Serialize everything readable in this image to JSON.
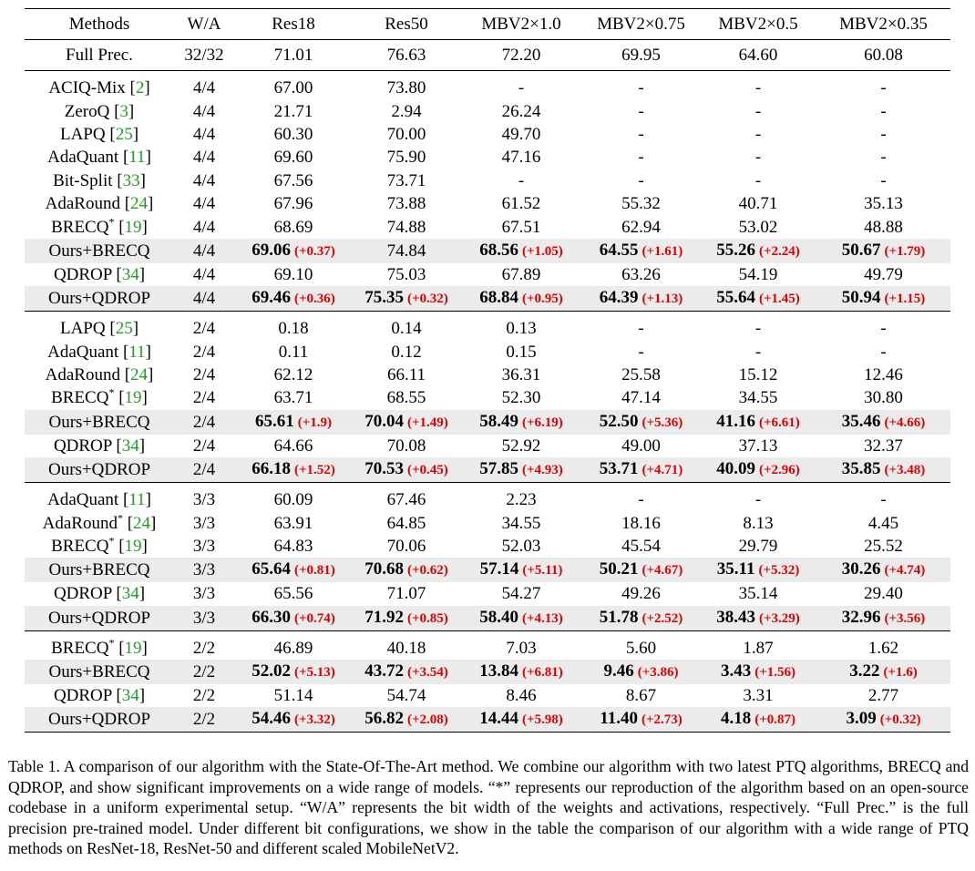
{
  "headers": [
    "Methods",
    "W/A",
    "Res18",
    "Res50",
    "MBV2×1.0",
    "MBV2×0.75",
    "MBV2×0.5",
    "MBV2×0.35"
  ],
  "full_prec": {
    "method": "Full Prec.",
    "wa": "32/32",
    "values": [
      "71.01",
      "76.63",
      "72.20",
      "69.95",
      "64.60",
      "60.08"
    ]
  },
  "groups": [
    {
      "rows": [
        {
          "method": "ACIQ-Mix",
          "ref": "2",
          "star": false,
          "wa": "4/4",
          "ours": false,
          "cells": [
            {
              "v": "67.00"
            },
            {
              "v": "73.80"
            },
            {
              "v": "-"
            },
            {
              "v": "-"
            },
            {
              "v": "-"
            },
            {
              "v": "-"
            }
          ]
        },
        {
          "method": "ZeroQ",
          "ref": "3",
          "star": false,
          "wa": "4/4",
          "ours": false,
          "cells": [
            {
              "v": "21.71"
            },
            {
              "v": "2.94"
            },
            {
              "v": "26.24"
            },
            {
              "v": "-"
            },
            {
              "v": "-"
            },
            {
              "v": "-"
            }
          ]
        },
        {
          "method": "LAPQ",
          "ref": "25",
          "star": false,
          "wa": "4/4",
          "ours": false,
          "cells": [
            {
              "v": "60.30"
            },
            {
              "v": "70.00"
            },
            {
              "v": "49.70"
            },
            {
              "v": "-"
            },
            {
              "v": "-"
            },
            {
              "v": "-"
            }
          ]
        },
        {
          "method": "AdaQuant",
          "ref": "11",
          "star": false,
          "wa": "4/4",
          "ours": false,
          "cells": [
            {
              "v": "69.60"
            },
            {
              "v": "75.90"
            },
            {
              "v": "47.16"
            },
            {
              "v": "-"
            },
            {
              "v": "-"
            },
            {
              "v": "-"
            }
          ]
        },
        {
          "method": "Bit-Split",
          "ref": "33",
          "star": false,
          "wa": "4/4",
          "ours": false,
          "cells": [
            {
              "v": "67.56"
            },
            {
              "v": "73.71"
            },
            {
              "v": "-"
            },
            {
              "v": "-"
            },
            {
              "v": "-"
            },
            {
              "v": "-"
            }
          ]
        },
        {
          "method": "AdaRound",
          "ref": "24",
          "star": false,
          "wa": "4/4",
          "ours": false,
          "cells": [
            {
              "v": "67.96"
            },
            {
              "v": "73.88"
            },
            {
              "v": "61.52"
            },
            {
              "v": "55.32"
            },
            {
              "v": "40.71"
            },
            {
              "v": "35.13"
            }
          ]
        },
        {
          "method": "BRECQ",
          "ref": "19",
          "star": true,
          "wa": "4/4",
          "ours": false,
          "cells": [
            {
              "v": "68.69"
            },
            {
              "v": "74.88"
            },
            {
              "v": "67.51"
            },
            {
              "v": "62.94"
            },
            {
              "v": "53.02"
            },
            {
              "v": "48.88"
            }
          ]
        },
        {
          "method": "Ours+BRECQ",
          "ref": "",
          "star": false,
          "wa": "4/4",
          "ours": true,
          "cells": [
            {
              "v": "69.06",
              "b": true,
              "g": "(+0.37)"
            },
            {
              "v": "74.84"
            },
            {
              "v": "68.56",
              "b": true,
              "g": "(+1.05)"
            },
            {
              "v": "64.55",
              "b": true,
              "g": "(+1.61)"
            },
            {
              "v": "55.26",
              "b": true,
              "g": "(+2.24)"
            },
            {
              "v": "50.67",
              "b": true,
              "g": "(+1.79)"
            }
          ]
        },
        {
          "method": "QDROP",
          "ref": "34",
          "star": false,
          "wa": "4/4",
          "ours": false,
          "cells": [
            {
              "v": "69.10"
            },
            {
              "v": "75.03"
            },
            {
              "v": "67.89"
            },
            {
              "v": "63.26"
            },
            {
              "v": "54.19"
            },
            {
              "v": "49.79"
            }
          ]
        },
        {
          "method": "Ours+QDROP",
          "ref": "",
          "star": false,
          "wa": "4/4",
          "ours": true,
          "cells": [
            {
              "v": "69.46",
              "b": true,
              "g": "(+0.36)"
            },
            {
              "v": "75.35",
              "b": true,
              "g": "(+0.32)"
            },
            {
              "v": "68.84",
              "b": true,
              "g": "(+0.95)"
            },
            {
              "v": "64.39",
              "b": true,
              "g": "(+1.13)"
            },
            {
              "v": "55.64",
              "b": true,
              "g": "(+1.45)"
            },
            {
              "v": "50.94",
              "b": true,
              "g": "(+1.15)"
            }
          ]
        }
      ]
    },
    {
      "rows": [
        {
          "method": "LAPQ",
          "ref": "25",
          "star": false,
          "wa": "2/4",
          "ours": false,
          "cells": [
            {
              "v": "0.18"
            },
            {
              "v": "0.14"
            },
            {
              "v": "0.13"
            },
            {
              "v": "-"
            },
            {
              "v": "-"
            },
            {
              "v": "-"
            }
          ]
        },
        {
          "method": "AdaQuant",
          "ref": "11",
          "star": false,
          "wa": "2/4",
          "ours": false,
          "cells": [
            {
              "v": "0.11"
            },
            {
              "v": "0.12"
            },
            {
              "v": "0.15"
            },
            {
              "v": "-"
            },
            {
              "v": "-"
            },
            {
              "v": "-"
            }
          ]
        },
        {
          "method": "AdaRound",
          "ref": "24",
          "star": false,
          "wa": "2/4",
          "ours": false,
          "cells": [
            {
              "v": "62.12"
            },
            {
              "v": "66.11"
            },
            {
              "v": "36.31"
            },
            {
              "v": "25.58"
            },
            {
              "v": "15.12"
            },
            {
              "v": "12.46"
            }
          ]
        },
        {
          "method": "BRECQ",
          "ref": "19",
          "star": true,
          "wa": "2/4",
          "ours": false,
          "cells": [
            {
              "v": "63.71"
            },
            {
              "v": "68.55"
            },
            {
              "v": "52.30"
            },
            {
              "v": "47.14"
            },
            {
              "v": "34.55"
            },
            {
              "v": "30.80"
            }
          ]
        },
        {
          "method": "Ours+BRECQ",
          "ref": "",
          "star": false,
          "wa": "2/4",
          "ours": true,
          "cells": [
            {
              "v": "65.61",
              "b": true,
              "g": "(+1.9)"
            },
            {
              "v": "70.04",
              "b": true,
              "g": "(+1.49)"
            },
            {
              "v": "58.49",
              "b": true,
              "g": "(+6.19)"
            },
            {
              "v": "52.50",
              "b": true,
              "g": "(+5.36)"
            },
            {
              "v": "41.16",
              "b": true,
              "g": "(+6.61)"
            },
            {
              "v": "35.46",
              "b": true,
              "g": "(+4.66)"
            }
          ]
        },
        {
          "method": "QDROP",
          "ref": "34",
          "star": false,
          "wa": "2/4",
          "ours": false,
          "cells": [
            {
              "v": "64.66"
            },
            {
              "v": "70.08"
            },
            {
              "v": "52.92"
            },
            {
              "v": "49.00"
            },
            {
              "v": "37.13"
            },
            {
              "v": "32.37"
            }
          ]
        },
        {
          "method": "Ours+QDROP",
          "ref": "",
          "star": false,
          "wa": "2/4",
          "ours": true,
          "cells": [
            {
              "v": "66.18",
              "b": true,
              "g": "(+1.52)"
            },
            {
              "v": "70.53",
              "b": true,
              "g": "(+0.45)"
            },
            {
              "v": "57.85",
              "b": true,
              "g": "(+4.93)"
            },
            {
              "v": "53.71",
              "b": true,
              "g": "(+4.71)"
            },
            {
              "v": "40.09",
              "b": true,
              "g": "(+2.96)"
            },
            {
              "v": "35.85",
              "b": true,
              "g": "(+3.48)"
            }
          ]
        }
      ]
    },
    {
      "rows": [
        {
          "method": "AdaQuant",
          "ref": "11",
          "star": false,
          "wa": "3/3",
          "ours": false,
          "cells": [
            {
              "v": "60.09"
            },
            {
              "v": "67.46"
            },
            {
              "v": "2.23"
            },
            {
              "v": "-"
            },
            {
              "v": "-"
            },
            {
              "v": "-"
            }
          ]
        },
        {
          "method": "AdaRound",
          "ref": "24",
          "star": true,
          "wa": "3/3",
          "ours": false,
          "cells": [
            {
              "v": "63.91"
            },
            {
              "v": "64.85"
            },
            {
              "v": "34.55"
            },
            {
              "v": "18.16"
            },
            {
              "v": "8.13"
            },
            {
              "v": "4.45"
            }
          ]
        },
        {
          "method": "BRECQ",
          "ref": "19",
          "star": true,
          "wa": "3/3",
          "ours": false,
          "cells": [
            {
              "v": "64.83"
            },
            {
              "v": "70.06"
            },
            {
              "v": "52.03"
            },
            {
              "v": "45.54"
            },
            {
              "v": "29.79"
            },
            {
              "v": "25.52"
            }
          ]
        },
        {
          "method": "Ours+BRECQ",
          "ref": "",
          "star": false,
          "wa": "3/3",
          "ours": true,
          "cells": [
            {
              "v": "65.64",
              "b": true,
              "g": "(+0.81)"
            },
            {
              "v": "70.68",
              "b": true,
              "g": "(+0.62)"
            },
            {
              "v": "57.14",
              "b": true,
              "g": "(+5.11)"
            },
            {
              "v": "50.21",
              "b": true,
              "g": "(+4.67)"
            },
            {
              "v": "35.11",
              "b": true,
              "g": "(+5.32)"
            },
            {
              "v": "30.26",
              "b": true,
              "g": "(+4.74)"
            }
          ]
        },
        {
          "method": "QDROP",
          "ref": "34",
          "star": false,
          "wa": "3/3",
          "ours": false,
          "cells": [
            {
              "v": "65.56"
            },
            {
              "v": "71.07"
            },
            {
              "v": "54.27"
            },
            {
              "v": "49.26"
            },
            {
              "v": "35.14"
            },
            {
              "v": "29.40"
            }
          ]
        },
        {
          "method": "Ours+QDROP",
          "ref": "",
          "star": false,
          "wa": "3/3",
          "ours": true,
          "cells": [
            {
              "v": "66.30",
              "b": true,
              "g": "(+0.74)"
            },
            {
              "v": "71.92",
              "b": true,
              "g": "(+0.85)"
            },
            {
              "v": "58.40",
              "b": true,
              "g": "(+4.13)"
            },
            {
              "v": "51.78",
              "b": true,
              "g": "(+2.52)"
            },
            {
              "v": "38.43",
              "b": true,
              "g": "(+3.29)"
            },
            {
              "v": "32.96",
              "b": true,
              "g": "(+3.56)"
            }
          ]
        }
      ]
    },
    {
      "rows": [
        {
          "method": "BRECQ",
          "ref": "19",
          "star": true,
          "wa": "2/2",
          "ours": false,
          "cells": [
            {
              "v": "46.89"
            },
            {
              "v": "40.18"
            },
            {
              "v": "7.03"
            },
            {
              "v": "5.60"
            },
            {
              "v": "1.87"
            },
            {
              "v": "1.62"
            }
          ]
        },
        {
          "method": "Ours+BRECQ",
          "ref": "",
          "star": false,
          "wa": "2/2",
          "ours": true,
          "cells": [
            {
              "v": "52.02",
              "b": true,
              "g": "(+5.13)"
            },
            {
              "v": "43.72",
              "b": true,
              "g": "(+3.54)"
            },
            {
              "v": "13.84",
              "b": true,
              "g": "(+6.81)"
            },
            {
              "v": "9.46",
              "b": true,
              "g": "(+3.86)"
            },
            {
              "v": "3.43",
              "b": true,
              "g": "(+1.56)"
            },
            {
              "v": "3.22",
              "b": true,
              "g": "(+1.6)"
            }
          ]
        },
        {
          "method": "QDROP",
          "ref": "34",
          "star": false,
          "wa": "2/2",
          "ours": false,
          "cells": [
            {
              "v": "51.14"
            },
            {
              "v": "54.74"
            },
            {
              "v": "8.46"
            },
            {
              "v": "8.67"
            },
            {
              "v": "3.31"
            },
            {
              "v": "2.77"
            }
          ]
        },
        {
          "method": "Ours+QDROP",
          "ref": "",
          "star": false,
          "wa": "2/2",
          "ours": true,
          "cells": [
            {
              "v": "54.46",
              "b": true,
              "g": "(+3.32)"
            },
            {
              "v": "56.82",
              "b": true,
              "g": "(+2.08)"
            },
            {
              "v": "14.44",
              "b": true,
              "g": "(+5.98)"
            },
            {
              "v": "11.40",
              "b": true,
              "g": "(+2.73)"
            },
            {
              "v": "4.18",
              "b": true,
              "g": "(+0.87)"
            },
            {
              "v": "3.09",
              "b": true,
              "g": "(+0.32)"
            }
          ]
        }
      ]
    }
  ],
  "star_symbol": "*",
  "caption": "Table 1. A comparison of our algorithm with the State-Of-The-Art method. We combine our algorithm with two latest PTQ algorithms, BRECQ and QDROP, and show significant improvements on a wide range of models. “*” represents our reproduction of the algorithm based on an open-source codebase in a uniform experimental setup. “W/A” represents the bit width of the weights and activations, respectively. “Full Prec.” is the full precision pre-trained model. Under different bit configurations, we show in the table the comparison of our algorithm with a wide range of PTQ methods on ResNet-18, ResNet-50 and different scaled MobileNetV2.",
  "colors": {
    "highlight_row": "#ebebeb",
    "gain_text": "#e00000",
    "citation_link": "#20a020"
  }
}
